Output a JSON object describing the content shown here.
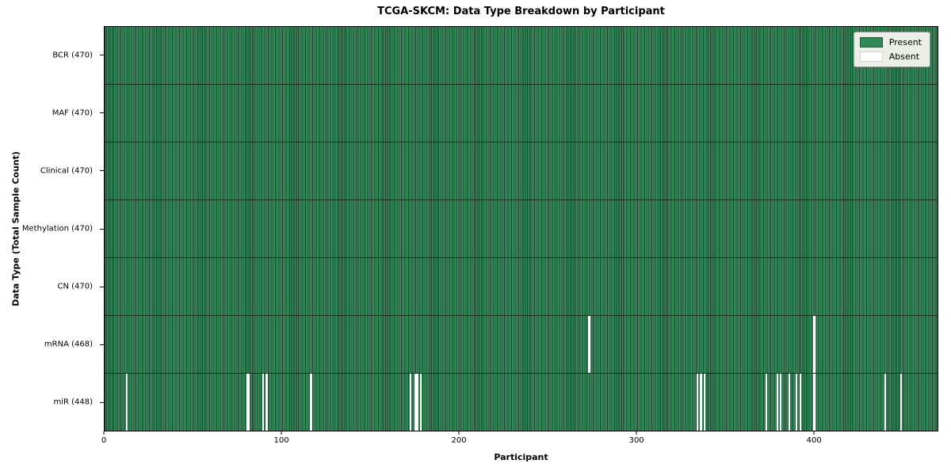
{
  "title": "TCGA-SKCM: Data Type Breakdown by Participant",
  "legend": {
    "present_label": "Present",
    "absent_label": "Absent"
  },
  "colors": {
    "present": "#2E8B57",
    "present_edge": "#17452a",
    "absent": "#FFFFFF",
    "legend_background": "#ECEEE8",
    "legend_border": "#9A9A9A",
    "row_divider": "#000000"
  },
  "chart_data": {
    "type": "heatmap",
    "title": "TCGA-SKCM: Data Type Breakdown by Participant",
    "xlabel": "Participant",
    "ylabel": "Data Type (Total Sample Count)",
    "xlim": [
      0,
      470
    ],
    "x_ticks": [
      0,
      100,
      200,
      300,
      400
    ],
    "n_participants": 470,
    "grid": false,
    "legend_position": "upper right",
    "legend_entries": [
      {
        "label": "Present",
        "color": "#2E8B57"
      },
      {
        "label": "Absent",
        "color": "#FFFFFF"
      }
    ],
    "rows": [
      {
        "name": "BCR",
        "label": "BCR (470)",
        "total": 470,
        "absent": []
      },
      {
        "name": "MAF",
        "label": "MAF (470)",
        "total": 470,
        "absent": []
      },
      {
        "name": "Clinical",
        "label": "Clinical (470)",
        "total": 470,
        "absent": []
      },
      {
        "name": "Methylation",
        "label": "Methylation (470)",
        "total": 470,
        "absent": []
      },
      {
        "name": "CN",
        "label": "CN (470)",
        "total": 470,
        "absent": []
      },
      {
        "name": "mRNA",
        "label": "mRNA (468)",
        "total": 468,
        "absent": [
          273,
          400
        ]
      },
      {
        "name": "miR",
        "label": "miR (448)",
        "total": 448,
        "absent": [
          12,
          80,
          81,
          89,
          91,
          116,
          172,
          175,
          176,
          178,
          334,
          336,
          338,
          373,
          379,
          381,
          386,
          390,
          392,
          400,
          440,
          449
        ]
      }
    ]
  }
}
